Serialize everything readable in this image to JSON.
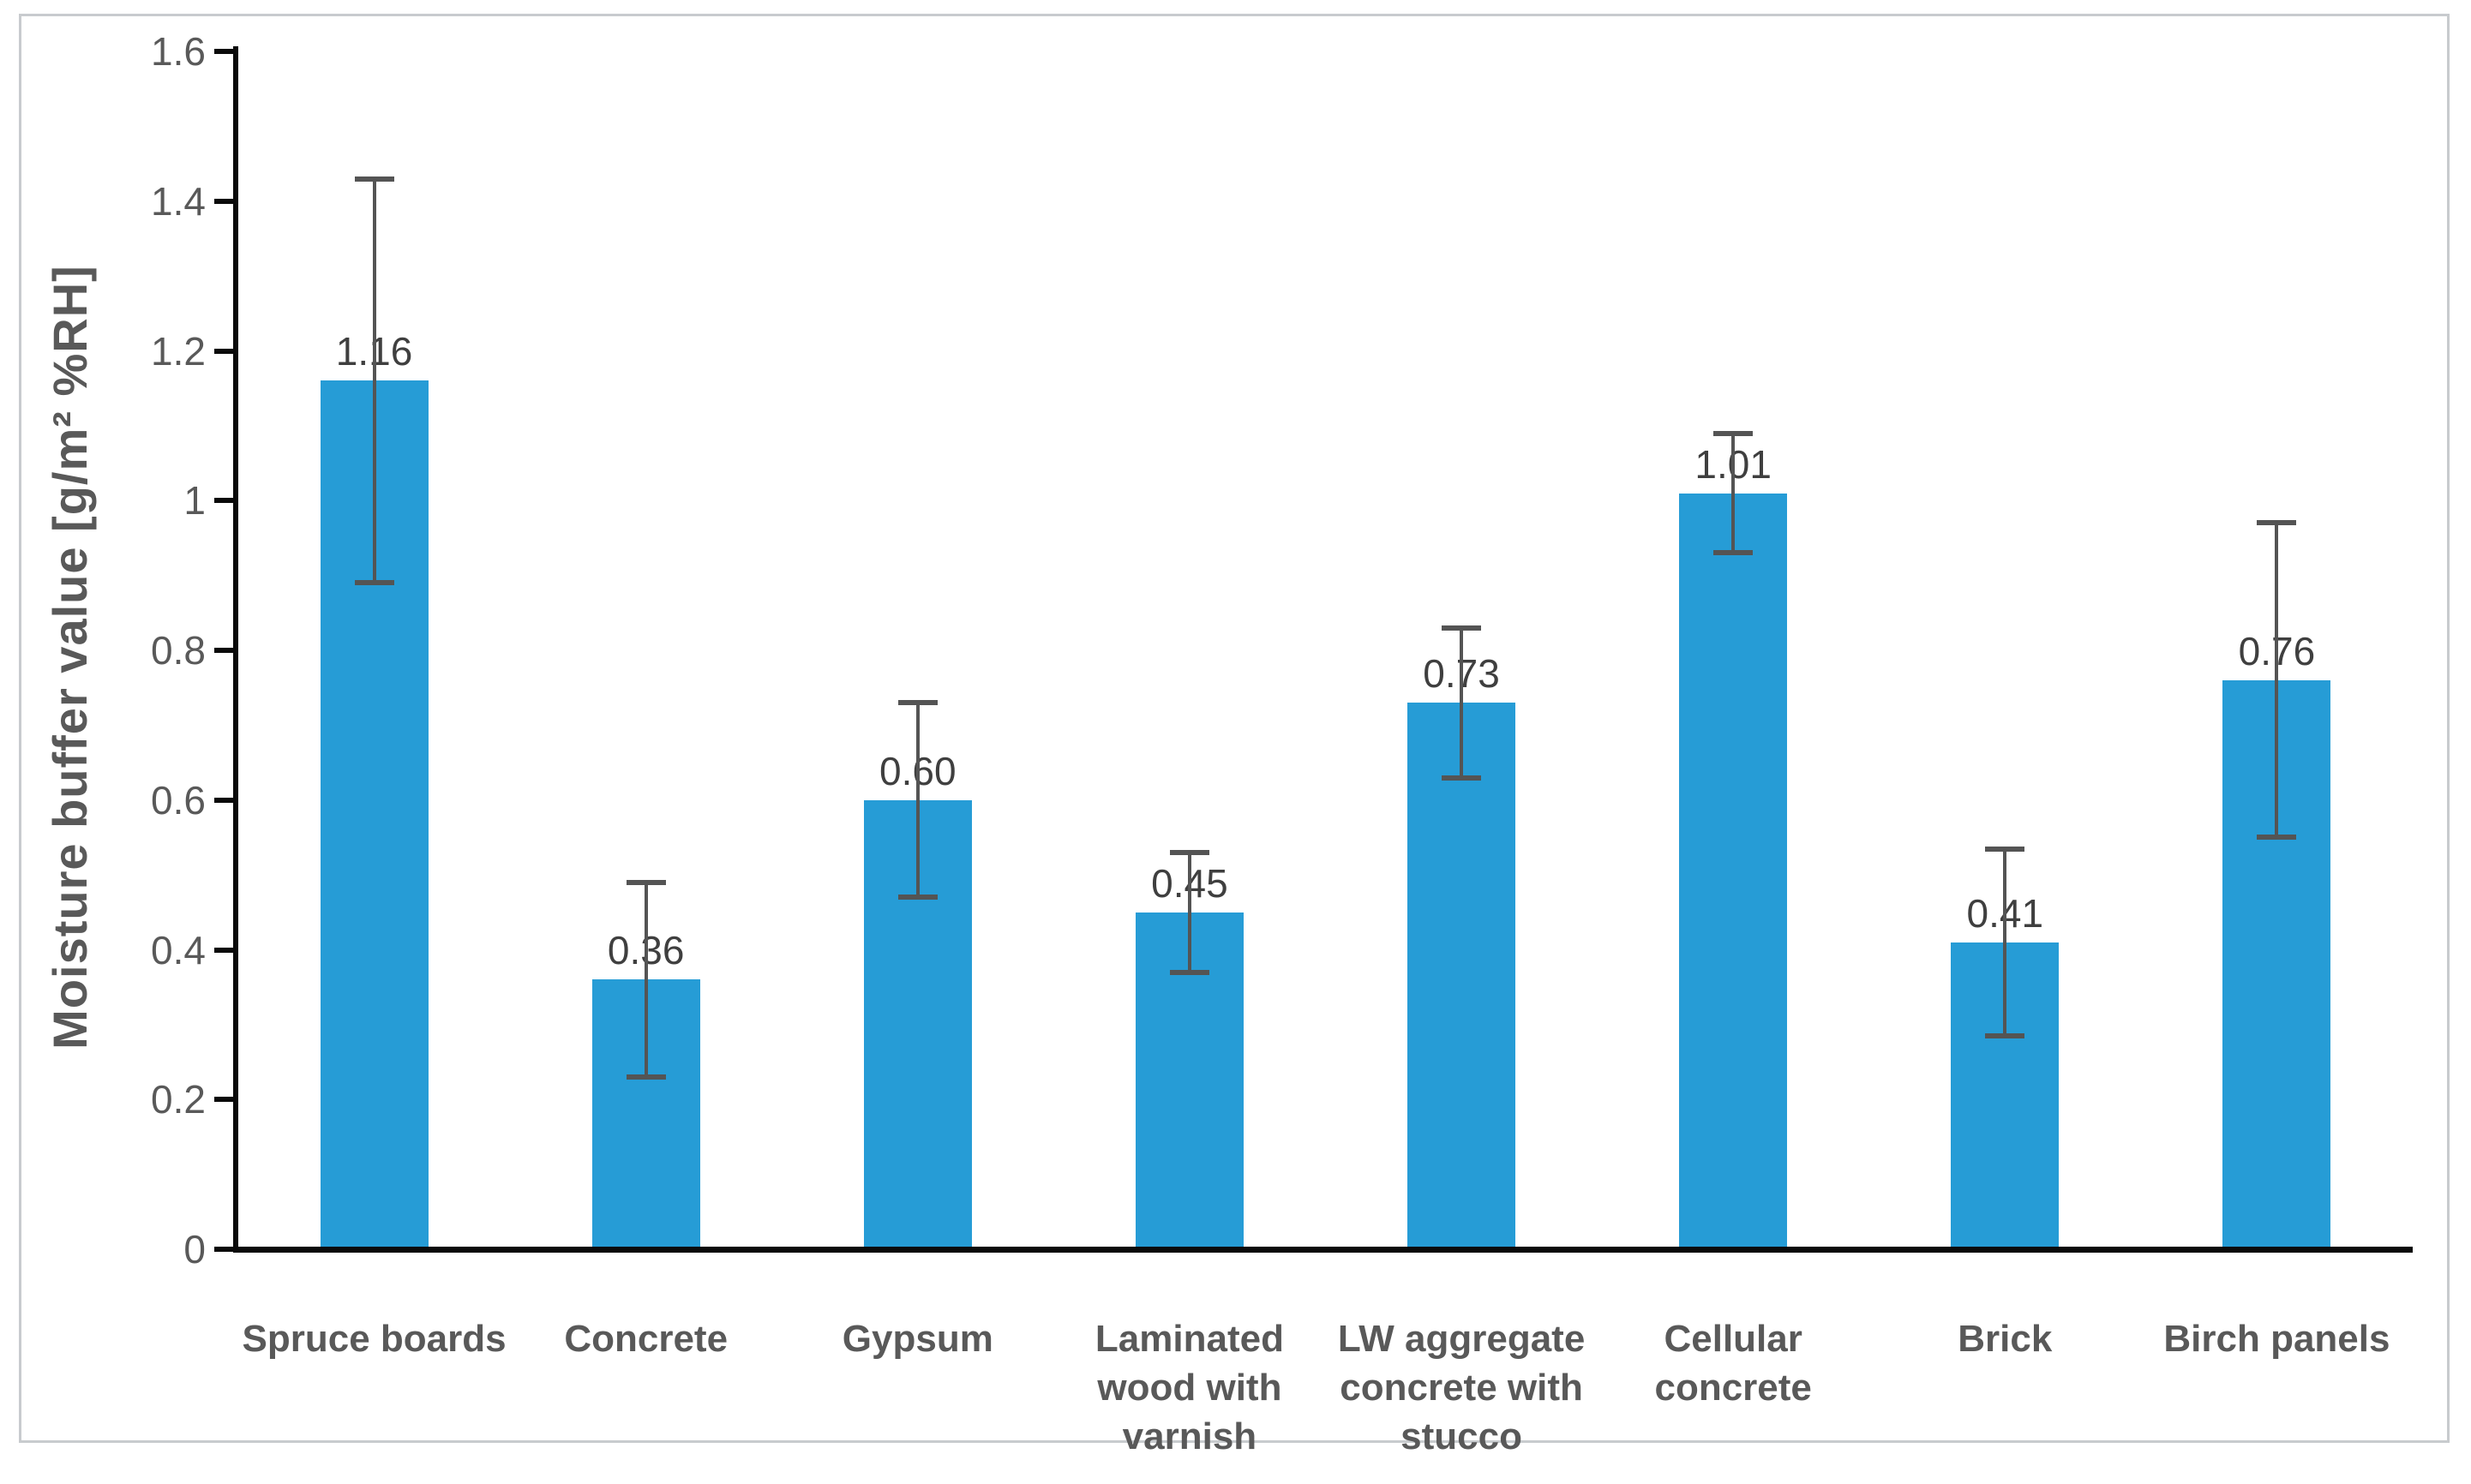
{
  "figure": {
    "background_color": "#ffffff",
    "frame_border_color": "#c8cbce"
  },
  "chart_data": {
    "type": "bar",
    "title": "",
    "xlabel": "",
    "ylabel": "Moisture buffer value [g/m² %RH]",
    "ylim": [
      0,
      1.6
    ],
    "ytick_step": 0.2,
    "yticks": [
      "0",
      "0.2",
      "0.4",
      "0.6",
      "0.8",
      "1",
      "1.2",
      "1.4",
      "1.6"
    ],
    "grid": false,
    "legend_position": "none",
    "bar_color": "#269cd6",
    "error_bar_color": "#545454",
    "axis_color": "#0a0a0a",
    "label_text_color": "#3f3f3f",
    "tick_text_color": "#595959",
    "categories": [
      "Spruce boards",
      "Concrete",
      "Gypsum",
      "Laminated\nwood with\nvarnish",
      "LW aggregate\nconcrete with\nstucco",
      "Cellular\nconcrete",
      "Brick",
      "Birch panels"
    ],
    "values": [
      1.16,
      0.36,
      0.6,
      0.45,
      0.73,
      1.01,
      0.41,
      0.76
    ],
    "value_labels": [
      "1.16",
      "0.36",
      "0.60",
      "0.45",
      "0.73",
      "1.01",
      "0.41",
      "0.76"
    ],
    "error_half_lengths": [
      0.27,
      0.13,
      0.13,
      0.08,
      0.1,
      0.08,
      0.125,
      0.21
    ]
  }
}
